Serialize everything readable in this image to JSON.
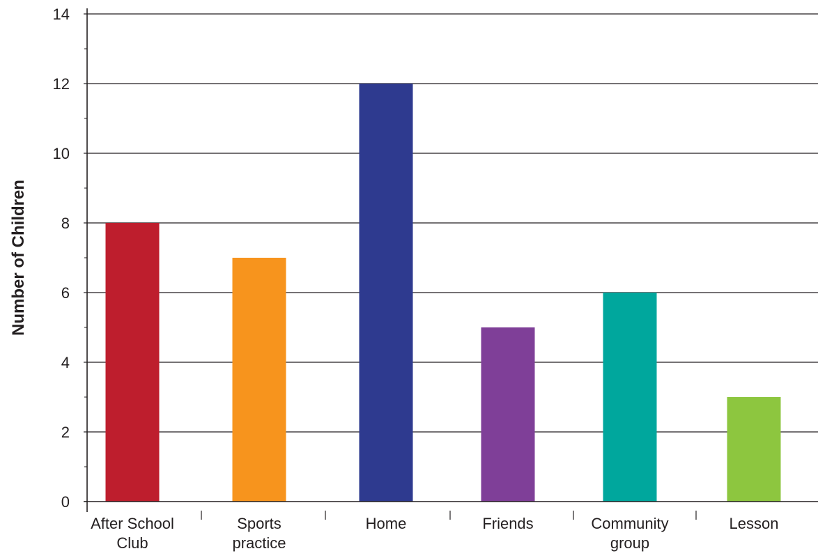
{
  "chart_data": {
    "type": "bar",
    "title": "",
    "xlabel": "",
    "ylabel": "Number of Children",
    "ylim": [
      0,
      14
    ],
    "yticks": [
      "0",
      "2",
      "4",
      "6",
      "8",
      "10",
      "12",
      "14"
    ],
    "grid": true,
    "categories": [
      [
        "After School",
        "Club"
      ],
      [
        "Sports",
        "practice"
      ],
      [
        "Home"
      ],
      [
        "Friends"
      ],
      [
        "Community",
        "group"
      ],
      [
        "Lesson"
      ]
    ],
    "values": [
      8,
      7,
      12,
      5,
      6,
      3
    ],
    "colors": [
      "#be1e2d",
      "#f7941d",
      "#2e3a8f",
      "#7f3f98",
      "#00a79d",
      "#8dc63f"
    ],
    "axis_color": "#231f20"
  }
}
